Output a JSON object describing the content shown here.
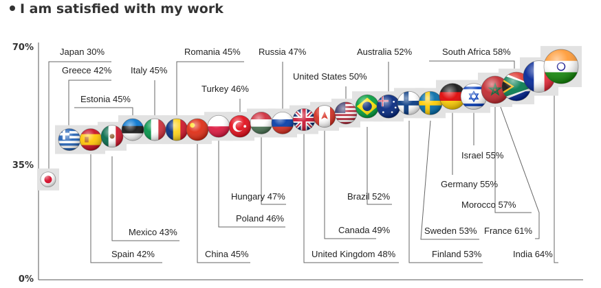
{
  "chart_data": {
    "type": "scatter",
    "title": "I am satisfied with my work",
    "y_ticks": [
      "70%",
      "35%",
      "0%"
    ],
    "ylim": [
      0,
      70
    ],
    "grid": false,
    "legend": "none",
    "points": [
      {
        "country": "Japan",
        "label": "Japan 30%",
        "value": 30,
        "flag": "japan-flag-icon"
      },
      {
        "country": "Greece",
        "label": "Greece 42%",
        "value": 42,
        "flag": "greece-flag-icon"
      },
      {
        "country": "Spain",
        "label": "Spain 42%",
        "value": 42,
        "flag": "spain-flag-icon"
      },
      {
        "country": "Mexico",
        "label": "Mexico 43%",
        "value": 43,
        "flag": "mexico-flag-icon"
      },
      {
        "country": "Estonia",
        "label": "Estonia 45%",
        "value": 45,
        "flag": "estonia-flag-icon"
      },
      {
        "country": "Italy",
        "label": "Italy 45%",
        "value": 45,
        "flag": "italy-flag-icon"
      },
      {
        "country": "Romania",
        "label": "Romania 45%",
        "value": 45,
        "flag": "romania-flag-icon"
      },
      {
        "country": "China",
        "label": "China 45%",
        "value": 45,
        "flag": "china-flag-icon"
      },
      {
        "country": "Poland",
        "label": "Poland 46%",
        "value": 46,
        "flag": "poland-flag-icon"
      },
      {
        "country": "Turkey",
        "label": "Turkey 46%",
        "value": 46,
        "flag": "turkey-flag-icon"
      },
      {
        "country": "Hungary",
        "label": "Hungary 47%",
        "value": 47,
        "flag": "hungary-flag-icon"
      },
      {
        "country": "Russia",
        "label": "Russia 47%",
        "value": 47,
        "flag": "russia-flag-icon"
      },
      {
        "country": "United Kingdom",
        "label": "United Kingdom 48%",
        "value": 48,
        "flag": "united-kingdom-flag-icon"
      },
      {
        "country": "Canada",
        "label": "Canada 49%",
        "value": 49,
        "flag": "canada-flag-icon"
      },
      {
        "country": "United States",
        "label": "United States 50%",
        "value": 50,
        "flag": "united-states-flag-icon"
      },
      {
        "country": "Brazil",
        "label": "Brazil 52%",
        "value": 52,
        "flag": "brazil-flag-icon"
      },
      {
        "country": "Australia",
        "label": "Australia 52%",
        "value": 52,
        "flag": "australia-flag-icon"
      },
      {
        "country": "Finland",
        "label": "Finland 53%",
        "value": 53,
        "flag": "finland-flag-icon"
      },
      {
        "country": "Sweden",
        "label": "Sweden 53%",
        "value": 53,
        "flag": "sweden-flag-icon"
      },
      {
        "country": "Germany",
        "label": "Germany  55%",
        "value": 55,
        "flag": "germany-flag-icon"
      },
      {
        "country": "Israel",
        "label": "Israel 55%",
        "value": 55,
        "flag": "israel-flag-icon"
      },
      {
        "country": "Morocco",
        "label": "Morocco 57%",
        "value": 57,
        "flag": "morocco-flag-icon"
      },
      {
        "country": "South Africa",
        "label": "South Africa 58%",
        "value": 58,
        "flag": "south-africa-flag-icon"
      },
      {
        "country": "France",
        "label": "France 61%",
        "value": 61,
        "flag": "france-flag-icon"
      },
      {
        "country": "India",
        "label": "India 64%",
        "value": 64,
        "flag": "india-flag-icon"
      }
    ]
  }
}
